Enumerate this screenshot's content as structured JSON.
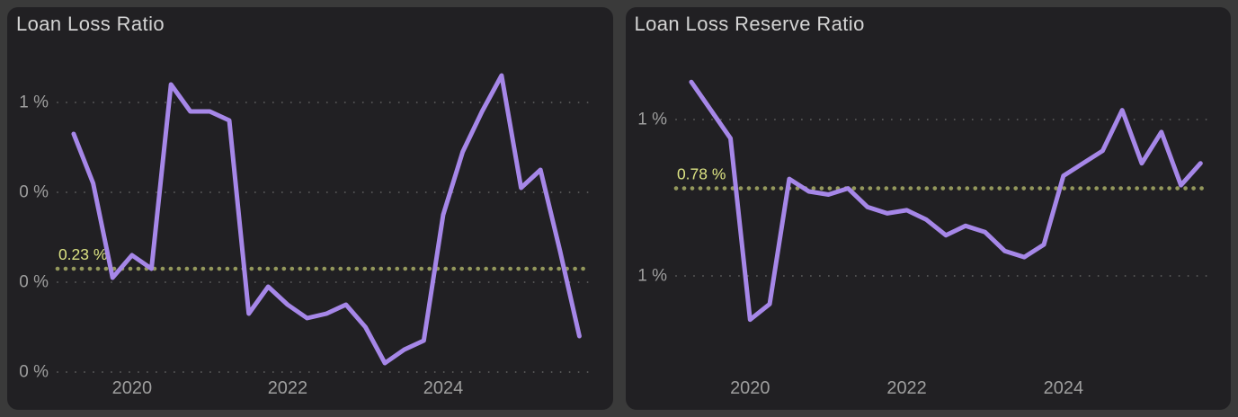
{
  "page": {
    "background": "#3a3a3a",
    "card_background": "#212023"
  },
  "colors": {
    "line": "#a687e8",
    "grid": "#5f5f5f",
    "axis_label": "#9e9e9e",
    "title": "#d4d4d4",
    "reference": "#94985c",
    "reference_label": "#dce383"
  },
  "chart_data": [
    {
      "type": "line",
      "title": "Loan Loss Ratio",
      "unit": "%",
      "legend": "none",
      "grid": "dotted",
      "ylim": [
        0.0,
        0.6
      ],
      "x": [
        "2019-Q2",
        "2019-Q3",
        "2019-Q4",
        "2020-Q1",
        "2020-Q2",
        "2020-Q3",
        "2020-Q4",
        "2021-Q1",
        "2021-Q2",
        "2021-Q3",
        "2021-Q4",
        "2022-Q1",
        "2022-Q2",
        "2022-Q3",
        "2022-Q4",
        "2023-Q1",
        "2023-Q2",
        "2023-Q3",
        "2023-Q4",
        "2024-Q1",
        "2024-Q2",
        "2024-Q3",
        "2024-Q4",
        "2025-Q1",
        "2025-Q2",
        "2025-Q3",
        "2025-Q4"
      ],
      "values": [
        0.53,
        0.42,
        0.21,
        0.26,
        0.23,
        0.64,
        0.58,
        0.58,
        0.56,
        0.13,
        0.19,
        0.15,
        0.12,
        0.13,
        0.15,
        0.1,
        0.02,
        0.05,
        0.07,
        0.35,
        0.49,
        0.58,
        0.66,
        0.41,
        0.45,
        0.27,
        0.08
      ],
      "y_ticks": [
        {
          "value": 0.0,
          "label": "0 %"
        },
        {
          "value": 0.2,
          "label": "0 %"
        },
        {
          "value": 0.4,
          "label": "0 %"
        },
        {
          "value": 0.6,
          "label": "1 %"
        }
      ],
      "x_ticks": [
        {
          "index": 3,
          "label": "2020"
        },
        {
          "index": 11,
          "label": "2022"
        },
        {
          "index": 19,
          "label": "2024"
        }
      ],
      "reference_line": {
        "value": 0.23,
        "label": "0.23 %"
      }
    },
    {
      "type": "line",
      "title": "Loan Loss Reserve Ratio",
      "unit": "%",
      "legend": "none",
      "grid": "dotted",
      "ylim": [
        0.5,
        1.0
      ],
      "x": [
        "2019-Q2",
        "2019-Q3",
        "2019-Q4",
        "2020-Q1",
        "2020-Q2",
        "2020-Q3",
        "2020-Q4",
        "2021-Q1",
        "2021-Q2",
        "2021-Q3",
        "2021-Q4",
        "2022-Q1",
        "2022-Q2",
        "2022-Q3",
        "2022-Q4",
        "2023-Q1",
        "2023-Q2",
        "2023-Q3",
        "2023-Q4",
        "2024-Q1",
        "2024-Q2",
        "2024-Q3",
        "2024-Q4",
        "2025-Q1",
        "2025-Q2",
        "2025-Q3",
        "2025-Q4"
      ],
      "values": [
        1.12,
        1.03,
        0.94,
        0.36,
        0.41,
        0.81,
        0.77,
        0.76,
        0.78,
        0.72,
        0.7,
        0.71,
        0.68,
        0.63,
        0.66,
        0.64,
        0.58,
        0.56,
        0.6,
        0.82,
        0.86,
        0.9,
        1.03,
        0.86,
        0.96,
        0.79,
        0.86
      ],
      "y_ticks": [
        {
          "value": 0.5,
          "label": "1 %"
        },
        {
          "value": 1.0,
          "label": "1 %"
        }
      ],
      "x_ticks": [
        {
          "index": 3,
          "label": "2020"
        },
        {
          "index": 11,
          "label": "2022"
        },
        {
          "index": 19,
          "label": "2024"
        }
      ],
      "reference_line": {
        "value": 0.78,
        "label": "0.78 %"
      }
    }
  ]
}
